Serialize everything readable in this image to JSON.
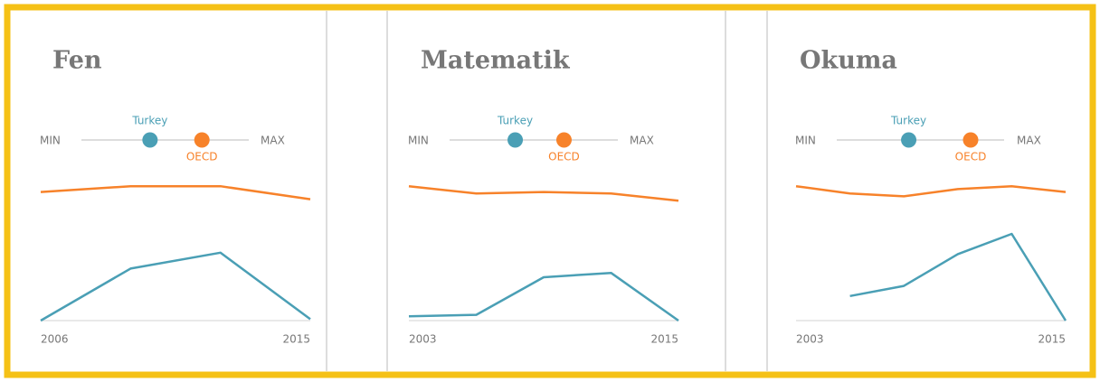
{
  "chart_data": [
    {
      "type": "line",
      "title": "Fen",
      "categories": [
        "2006",
        null,
        null,
        "2015"
      ],
      "ylim": [
        0,
        100
      ],
      "slider": {
        "min_label": "MIN",
        "max_label": "MAX",
        "lim": [
          0,
          100
        ]
      },
      "series": [
        {
          "name": "Turkey",
          "color": "#4a9fb5",
          "values": [
            0,
            36,
            47,
            1
          ],
          "slider_value": 41
        },
        {
          "name": "OECD",
          "color": "#f7822a",
          "values": [
            89,
            93,
            93,
            84
          ],
          "slider_value": 72
        }
      ]
    },
    {
      "type": "line",
      "title": "Matematik",
      "categories": [
        "2003",
        null,
        null,
        null,
        "2015"
      ],
      "ylim": [
        0,
        100
      ],
      "slider": {
        "min_label": "MIN",
        "max_label": "MAX",
        "lim": [
          0,
          100
        ]
      },
      "series": [
        {
          "name": "Turkey",
          "color": "#4a9fb5",
          "values": [
            3,
            4,
            30,
            33,
            0
          ],
          "slider_value": 39
        },
        {
          "name": "OECD",
          "color": "#f7822a",
          "values": [
            93,
            88,
            89,
            88,
            83
          ],
          "slider_value": 68
        }
      ]
    },
    {
      "type": "line",
      "title": "Okuma",
      "categories": [
        "2003",
        null,
        null,
        null,
        null,
        "2015"
      ],
      "ylim": [
        0,
        100
      ],
      "slider": {
        "min_label": "MIN",
        "max_label": "MAX",
        "lim": [
          0,
          100
        ]
      },
      "series": [
        {
          "name": "Turkey",
          "color": "#4a9fb5",
          "values": [
            null,
            17,
            24,
            46,
            60,
            0
          ],
          "slider_value": 43
        },
        {
          "name": "OECD",
          "color": "#f7822a",
          "values": [
            93,
            88,
            86,
            91,
            93,
            89
          ],
          "slider_value": 80
        }
      ]
    }
  ]
}
